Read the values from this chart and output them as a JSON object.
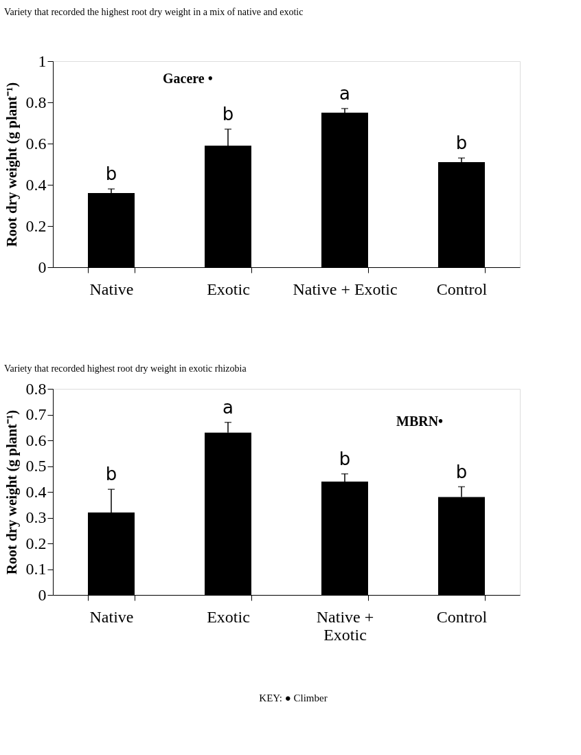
{
  "chart_data": [
    {
      "type": "bar",
      "title": "Variety that recorded the highest root dry weight in a mix of native and exotic",
      "ylabel": "Root dry weight (g plant⁻¹)",
      "categories": [
        "Native",
        "Exotic",
        "Native + Exotic",
        "Control"
      ],
      "values": [
        0.36,
        0.59,
        0.75,
        0.51
      ],
      "color": "#000000",
      "errors": [
        [
          0.36,
          0.38
        ],
        [
          0.59,
          0.67
        ],
        [
          0.75,
          0.77
        ],
        [
          0.51,
          0.53
        ]
      ],
      "ylim": [
        0,
        1
      ],
      "yticks": [
        0,
        0.2,
        0.4,
        0.6,
        0.8,
        1
      ],
      "grid": false,
      "legend": false,
      "annotations": [
        "Gacere •",
        {
          "text": "b",
          "x": "Native",
          "y": 0.38
        },
        {
          "text": "b",
          "x": "Exotic",
          "y": 0.67
        },
        {
          "text": "a",
          "x": "Native + Exotic",
          "y": 0.77
        },
        {
          "text": "b",
          "x": "Control",
          "y": 0.53
        }
      ]
    },
    {
      "type": "bar",
      "title": "Variety that recorded highest root dry weight in exotic rhizobia",
      "ylabel": "Root dry weight (g plant⁻¹)",
      "categories": [
        "Native",
        "Exotic",
        "Native + Exotic",
        "Control"
      ],
      "values": [
        0.32,
        0.63,
        0.44,
        0.38
      ],
      "color": "#000000",
      "errors": [
        [
          0.32,
          0.41
        ],
        [
          0.63,
          0.67
        ],
        [
          0.44,
          0.47
        ],
        [
          0.38,
          0.42
        ]
      ],
      "ylim": [
        0,
        0.8
      ],
      "yticks": [
        0,
        0.1,
        0.2,
        0.3,
        0.4,
        0.5,
        0.6,
        0.7,
        0.8
      ],
      "grid": false,
      "legend": false,
      "annotations": [
        "MBRN•",
        {
          "text": "b",
          "x": "Native",
          "y": 0.41
        },
        {
          "text": "a",
          "x": "Exotic",
          "y": 0.67
        },
        {
          "text": "b",
          "x": "Native + Exotic",
          "y": 0.47
        },
        {
          "text": "b",
          "x": "Control",
          "y": 0.42
        },
        "KEY: ● Climber"
      ]
    }
  ]
}
